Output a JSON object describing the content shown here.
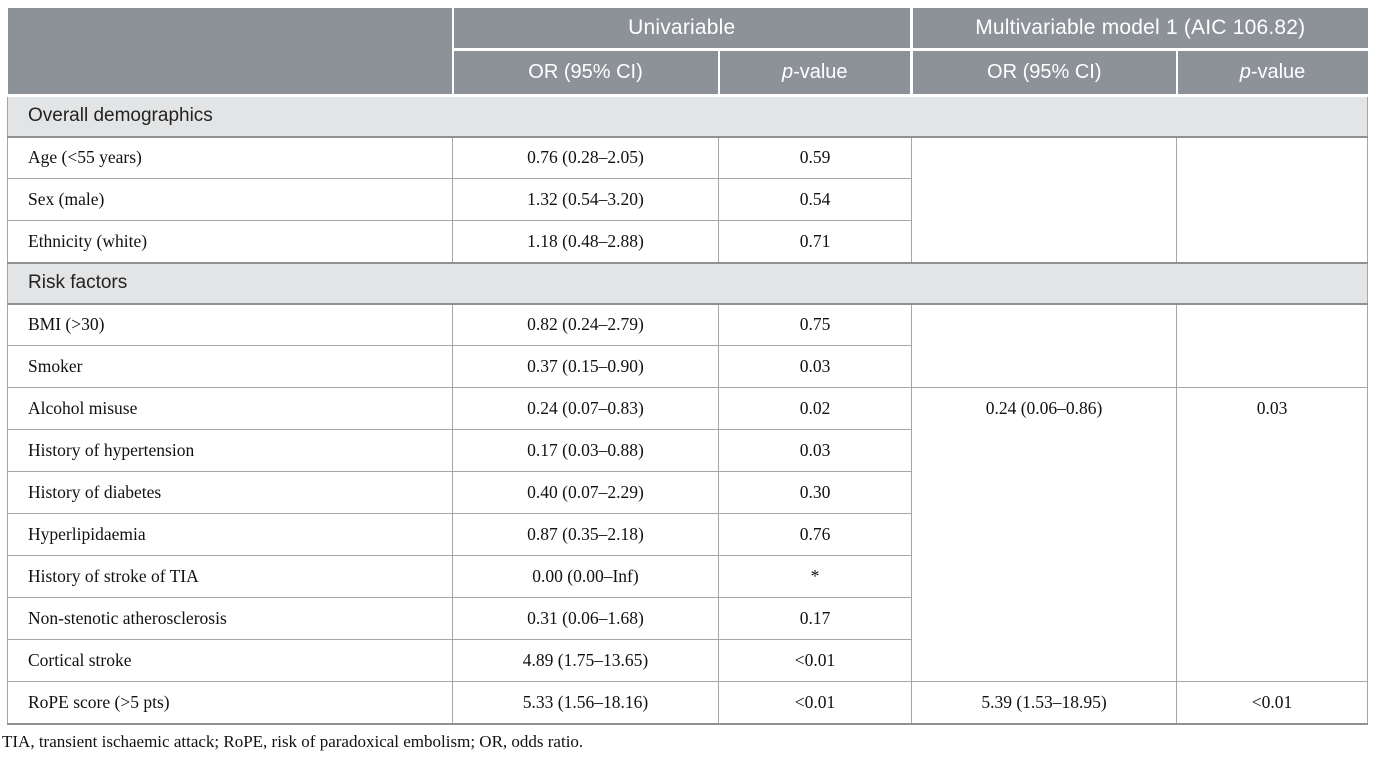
{
  "colors": {
    "header_bg": "#8d9298",
    "header_text": "#ffffff",
    "section_bg": "#e3e4e5",
    "body_text": "#111111",
    "grid_line": "#a6a6a6",
    "section_line": "#8f9092"
  },
  "header": {
    "groups": [
      {
        "label": "Univariable"
      },
      {
        "label": "Multivariable model 1 (AIC 106.82)"
      }
    ],
    "uni_or_label": "OR (95% CI)",
    "multi_or_label": "OR (95% CI)",
    "p_label_italic": "p",
    "p_label_rest": "-value"
  },
  "sections": [
    {
      "title": "Overall demographics",
      "multi_or": "",
      "multi_p": "",
      "rows": [
        {
          "label": "Age (<55 years)",
          "uni_or": "0.76 (0.28–2.05)",
          "uni_p": "0.59"
        },
        {
          "label": "Sex (male)",
          "uni_or": "1.32 (0.54–3.20)",
          "uni_p": "0.54"
        },
        {
          "label": "Ethnicity (white)",
          "uni_or": "1.18 (0.48–2.88)",
          "uni_p": "0.71"
        }
      ]
    },
    {
      "title": "Risk factors",
      "multi_or_upper": "",
      "multi_p_upper": "",
      "rows": [
        {
          "label": "BMI (>30)",
          "uni_or": "0.82 (0.24–2.79)",
          "uni_p": "0.75"
        },
        {
          "label": "Smoker",
          "uni_or": "0.37 (0.15–0.90)",
          "uni_p": "0.03"
        },
        {
          "label": "Alcohol misuse",
          "uni_or": "0.24 (0.07–0.83)",
          "uni_p": "0.02",
          "multi_or": "0.24 (0.06–0.86)",
          "multi_p": "0.03"
        },
        {
          "label": "History of hypertension",
          "uni_or": "0.17 (0.03–0.88)",
          "uni_p": "0.03"
        },
        {
          "label": "History of diabetes",
          "uni_or": "0.40 (0.07–2.29)",
          "uni_p": "0.30"
        },
        {
          "label": "Hyperlipidaemia",
          "uni_or": "0.87 (0.35–2.18)",
          "uni_p": "0.76"
        },
        {
          "label": "History of stroke of TIA",
          "uni_or": "0.00 (0.00–Inf)",
          "uni_p": "*"
        },
        {
          "label": "Non-stenotic atherosclerosis",
          "uni_or": "0.31 (0.06–1.68)",
          "uni_p": "0.17"
        },
        {
          "label": "Cortical stroke",
          "uni_or": "4.89 (1.75–13.65)",
          "uni_p": "<0.01"
        },
        {
          "label": "RoPE score (>5 pts)",
          "uni_or": "5.33 (1.56–18.16)",
          "uni_p": "<0.01",
          "multi_or": "5.39 (1.53–18.95)",
          "multi_p": "<0.01"
        }
      ]
    }
  ],
  "footnote": "TIA, transient ischaemic attack; RoPE, risk of paradoxical embolism; OR, odds ratio."
}
